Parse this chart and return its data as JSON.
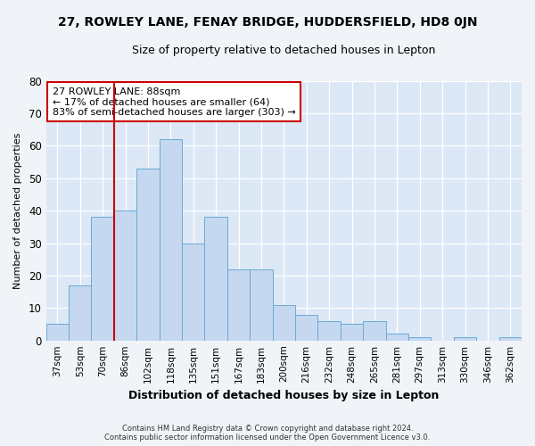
{
  "title1": "27, ROWLEY LANE, FENAY BRIDGE, HUDDERSFIELD, HD8 0JN",
  "title2": "Size of property relative to detached houses in Lepton",
  "xlabel": "Distribution of detached houses by size in Lepton",
  "ylabel": "Number of detached properties",
  "footer1": "Contains HM Land Registry data © Crown copyright and database right 2024.",
  "footer2": "Contains public sector information licensed under the Open Government Licence v3.0.",
  "categories": [
    "37sqm",
    "53sqm",
    "70sqm",
    "86sqm",
    "102sqm",
    "118sqm",
    "135sqm",
    "151sqm",
    "167sqm",
    "183sqm",
    "200sqm",
    "216sqm",
    "232sqm",
    "248sqm",
    "265sqm",
    "281sqm",
    "297sqm",
    "313sqm",
    "330sqm",
    "346sqm",
    "362sqm"
  ],
  "values": [
    5,
    17,
    38,
    40,
    53,
    62,
    30,
    38,
    22,
    22,
    11,
    8,
    6,
    5,
    6,
    2,
    1,
    0,
    1,
    0,
    1
  ],
  "bar_color": "#c5d8f0",
  "bar_edge_color": "#6aaad4",
  "vline_color": "#cc0000",
  "annotation_text": "27 ROWLEY LANE: 88sqm\n← 17% of detached houses are smaller (64)\n83% of semi-detached houses are larger (303) →",
  "annotation_box_color": "#ffffff",
  "annotation_box_edge": "#cc0000",
  "ylim": [
    0,
    80
  ],
  "yticks": [
    0,
    10,
    20,
    30,
    40,
    50,
    60,
    70,
    80
  ],
  "background_color": "#dce8f5",
  "grid_color": "#ffffff",
  "fig_background": "#f0f4f8",
  "title1_fontsize": 10,
  "title2_fontsize": 9
}
